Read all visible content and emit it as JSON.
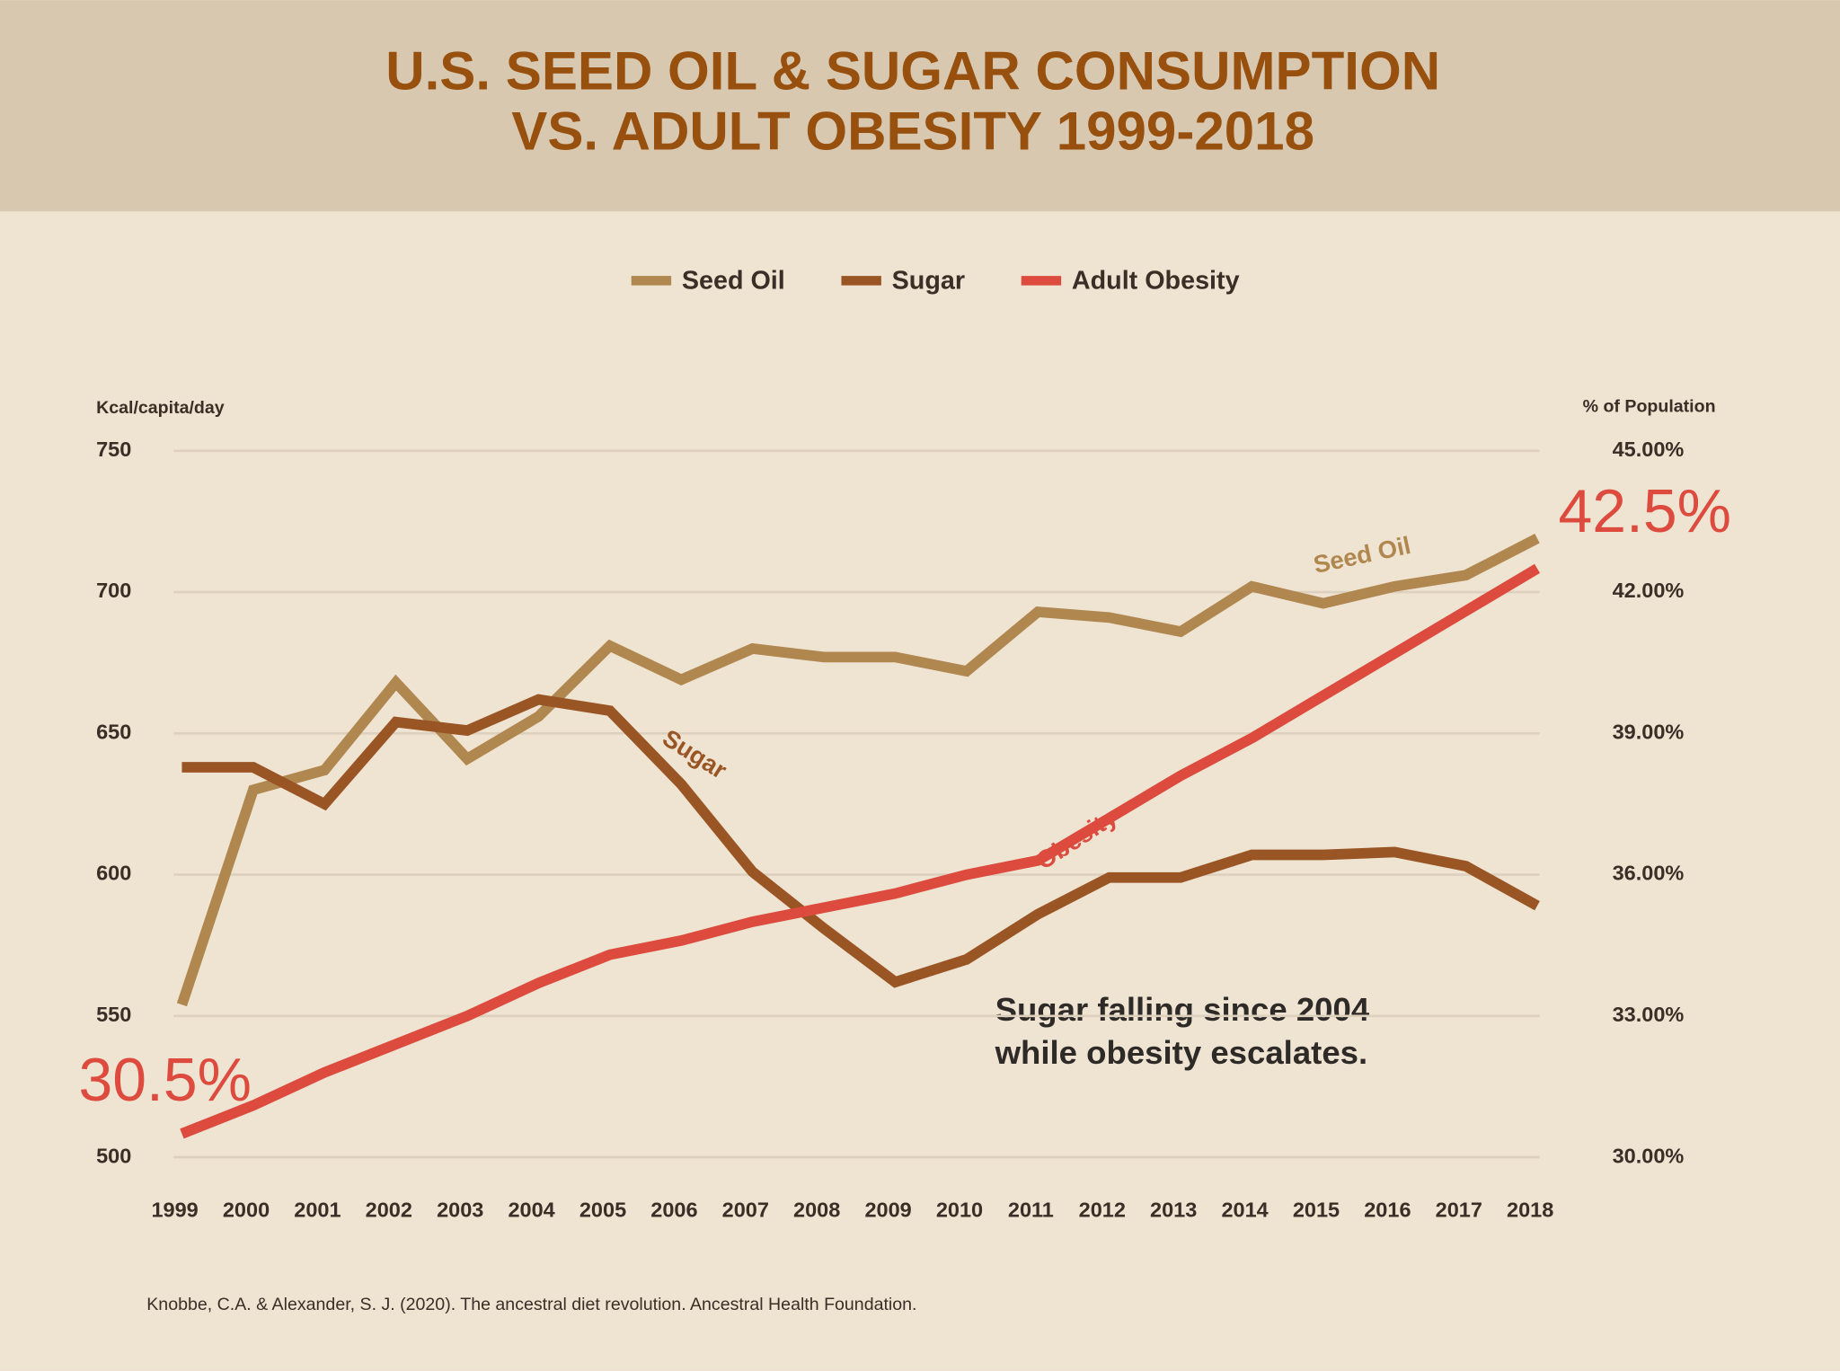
{
  "chart_data": {
    "type": "line",
    "title": [
      "U.S. SEED OIL & SUGAR CONSUMPTION",
      "VS. ADULT OBESITY 1999-2018"
    ],
    "y_label": "Kcal/capita/day",
    "y2_label": "% of Population",
    "categories": [
      "1999",
      "2000",
      "2001",
      "2002",
      "2003",
      "2004",
      "2005",
      "2006",
      "2007",
      "2008",
      "2009",
      "2010",
      "2011",
      "2012",
      "2013",
      "2014",
      "2015",
      "2016",
      "2017",
      "2018"
    ],
    "series": [
      {
        "name": "Seed Oil",
        "color": "#b0874f",
        "values": [
          554,
          630,
          637,
          668,
          641,
          656,
          681,
          669,
          680,
          677,
          677,
          672,
          693,
          691,
          686,
          702,
          696,
          702,
          706,
          719
        ]
      },
      {
        "name": "Sugar",
        "color": "#9a5525",
        "values": [
          638,
          638,
          625,
          654,
          651,
          662,
          658,
          632,
          601,
          581,
          562,
          570,
          586,
          599,
          599,
          607,
          607,
          608,
          603,
          589
        ]
      },
      {
        "name": "Adult Obesity",
        "color": "#dc4b3e",
        "axis": "y2",
        "values": [
          30.5,
          31.1,
          31.8,
          32.4,
          33.0,
          33.7,
          34.3,
          34.6,
          35.0,
          35.3,
          35.6,
          36.0,
          36.3,
          37.2,
          38.1,
          38.9,
          39.8,
          40.7,
          41.6,
          42.5
        ],
        "value_labels": [
          "30.5%",
          null,
          null,
          null,
          null,
          null,
          null,
          null,
          null,
          null,
          null,
          null,
          null,
          null,
          null,
          null,
          null,
          null,
          null,
          "42.5%"
        ]
      }
    ],
    "ylim": [
      500,
      750
    ],
    "yticks": [
      500,
      550,
      600,
      650,
      700,
      750
    ],
    "y2lim": [
      30,
      45
    ],
    "y2ticks": [
      {
        "value": 30,
        "label": "30.00%"
      },
      {
        "value": 33,
        "label": "33.00%"
      },
      {
        "value": 36,
        "label": "36.00%"
      },
      {
        "value": 39,
        "label": "39.00%"
      },
      {
        "value": 42,
        "label": "42.00%"
      },
      {
        "value": 45,
        "label": "45.00%"
      }
    ],
    "grid": true,
    "legend": "top",
    "annotations": [
      "Obesity",
      "Sugar falling since 2004",
      "while obesity escalates."
    ],
    "source": "Knobbe, C.A. & Alexander, S. J. (2020). The ancestral diet revolution. Ancestral Health Foundation."
  }
}
